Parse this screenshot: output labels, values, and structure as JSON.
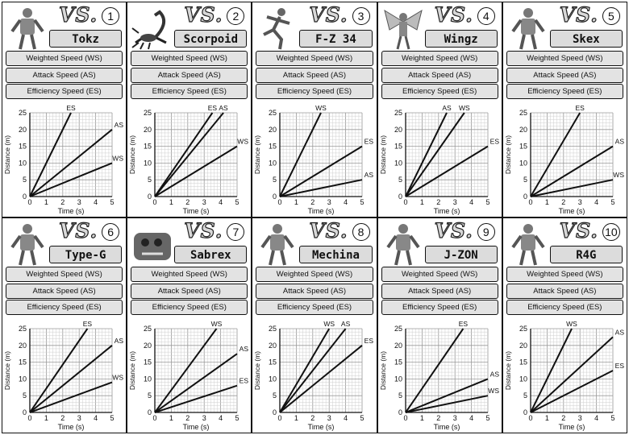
{
  "vs_label": "VS.",
  "rows": [
    "Weighted Speed (WS)",
    "Attack Speed (AS)",
    "Efficiency Speed (ES)"
  ],
  "axis": {
    "xlabel": "Time (s)",
    "ylabel": "Distance (m)",
    "xticks": [
      "0",
      "1",
      "2",
      "3",
      "4",
      "5"
    ],
    "yticks": [
      "0",
      "5",
      "10",
      "15",
      "20",
      "25"
    ]
  },
  "cards": [
    {
      "num": "1",
      "name": "Tokz",
      "robot_icon": "humanoid-robot-icon"
    },
    {
      "num": "2",
      "name": "Scorpoid",
      "robot_icon": "scorpion-robot-icon"
    },
    {
      "num": "3",
      "name": "F-Z 34",
      "robot_icon": "running-robot-icon"
    },
    {
      "num": "4",
      "name": "Wingz",
      "robot_icon": "winged-robot-icon"
    },
    {
      "num": "5",
      "name": "Skex",
      "robot_icon": "skeleton-robot-icon"
    },
    {
      "num": "6",
      "name": "Type-G",
      "robot_icon": "mech-robot-icon"
    },
    {
      "num": "7",
      "name": "Sabrex",
      "robot_icon": "lion-robot-icon"
    },
    {
      "num": "8",
      "name": "Mechina",
      "robot_icon": "armored-robot-icon"
    },
    {
      "num": "9",
      "name": "J-ZON",
      "robot_icon": "android-robot-icon"
    },
    {
      "num": "10",
      "name": "R4G",
      "robot_icon": "walker-robot-icon"
    }
  ],
  "chart_data": [
    {
      "type": "line",
      "xlim": [
        0,
        5
      ],
      "ylim": [
        0,
        25
      ],
      "xlabel": "Time (s)",
      "ylabel": "Distance (m)",
      "grid": true,
      "series": [
        {
          "name": "ES",
          "x": [
            0,
            2.5
          ],
          "y": [
            0,
            25
          ]
        },
        {
          "name": "AS",
          "x": [
            0,
            5
          ],
          "y": [
            0,
            20
          ]
        },
        {
          "name": "WS",
          "x": [
            0,
            5
          ],
          "y": [
            0,
            10
          ]
        }
      ]
    },
    {
      "type": "line",
      "xlim": [
        0,
        5
      ],
      "ylim": [
        0,
        25
      ],
      "xlabel": "Time (s)",
      "ylabel": "Distance (m)",
      "grid": true,
      "series": [
        {
          "name": "ES",
          "x": [
            0,
            3.5
          ],
          "y": [
            0,
            25
          ]
        },
        {
          "name": "AS",
          "x": [
            0,
            4.17
          ],
          "y": [
            0,
            25
          ]
        },
        {
          "name": "WS",
          "x": [
            0,
            5
          ],
          "y": [
            0,
            15
          ]
        }
      ]
    },
    {
      "type": "line",
      "xlim": [
        0,
        5
      ],
      "ylim": [
        0,
        25
      ],
      "xlabel": "Time (s)",
      "ylabel": "Distance (m)",
      "grid": true,
      "series": [
        {
          "name": "WS",
          "x": [
            0,
            2.5
          ],
          "y": [
            0,
            25
          ]
        },
        {
          "name": "ES",
          "x": [
            0,
            5
          ],
          "y": [
            0,
            15
          ]
        },
        {
          "name": "AS",
          "x": [
            0,
            5
          ],
          "y": [
            0,
            5
          ]
        }
      ]
    },
    {
      "type": "line",
      "xlim": [
        0,
        5
      ],
      "ylim": [
        0,
        25
      ],
      "xlabel": "Time (s)",
      "ylabel": "Distance (m)",
      "grid": true,
      "series": [
        {
          "name": "AS",
          "x": [
            0,
            2.5
          ],
          "y": [
            0,
            25
          ]
        },
        {
          "name": "WS",
          "x": [
            0,
            3.57
          ],
          "y": [
            0,
            25
          ]
        },
        {
          "name": "ES",
          "x": [
            0,
            5
          ],
          "y": [
            0,
            15
          ]
        }
      ]
    },
    {
      "type": "line",
      "xlim": [
        0,
        5
      ],
      "ylim": [
        0,
        25
      ],
      "xlabel": "Time (s)",
      "ylabel": "Distance (m)",
      "grid": true,
      "series": [
        {
          "name": "ES",
          "x": [
            0,
            3
          ],
          "y": [
            0,
            25
          ]
        },
        {
          "name": "AS",
          "x": [
            0,
            5
          ],
          "y": [
            0,
            15
          ]
        },
        {
          "name": "WS",
          "x": [
            0,
            5
          ],
          "y": [
            0,
            5
          ]
        }
      ]
    },
    {
      "type": "line",
      "xlim": [
        0,
        5
      ],
      "ylim": [
        0,
        25
      ],
      "xlabel": "Time (s)",
      "ylabel": "Distance (m)",
      "grid": true,
      "series": [
        {
          "name": "ES",
          "x": [
            0,
            3.5
          ],
          "y": [
            0,
            25
          ]
        },
        {
          "name": "AS",
          "x": [
            0,
            5
          ],
          "y": [
            0,
            20
          ]
        },
        {
          "name": "WS",
          "x": [
            0,
            5
          ],
          "y": [
            0,
            9
          ]
        }
      ]
    },
    {
      "type": "line",
      "xlim": [
        0,
        5
      ],
      "ylim": [
        0,
        25
      ],
      "xlabel": "Time (s)",
      "ylabel": "Distance (m)",
      "grid": true,
      "series": [
        {
          "name": "WS",
          "x": [
            0,
            3.75
          ],
          "y": [
            0,
            25
          ]
        },
        {
          "name": "AS",
          "x": [
            0,
            5
          ],
          "y": [
            0,
            17.5
          ]
        },
        {
          "name": "ES",
          "x": [
            0,
            5
          ],
          "y": [
            0,
            8
          ]
        }
      ]
    },
    {
      "type": "line",
      "xlim": [
        0,
        5
      ],
      "ylim": [
        0,
        25
      ],
      "xlabel": "Time (s)",
      "ylabel": "Distance (m)",
      "grid": true,
      "series": [
        {
          "name": "WS",
          "x": [
            0,
            3
          ],
          "y": [
            0,
            25
          ]
        },
        {
          "name": "AS",
          "x": [
            0,
            4
          ],
          "y": [
            0,
            25
          ]
        },
        {
          "name": "ES",
          "x": [
            0,
            5
          ],
          "y": [
            0,
            20
          ]
        }
      ]
    },
    {
      "type": "line",
      "xlim": [
        0,
        5
      ],
      "ylim": [
        0,
        25
      ],
      "xlabel": "Time (s)",
      "ylabel": "Distance (m)",
      "grid": true,
      "series": [
        {
          "name": "ES",
          "x": [
            0,
            3.5
          ],
          "y": [
            0,
            25
          ]
        },
        {
          "name": "AS",
          "x": [
            0,
            5
          ],
          "y": [
            0,
            10
          ]
        },
        {
          "name": "WS",
          "x": [
            0,
            5
          ],
          "y": [
            0,
            5
          ]
        }
      ]
    },
    {
      "type": "line",
      "xlim": [
        0,
        5
      ],
      "ylim": [
        0,
        25
      ],
      "xlabel": "Time (s)",
      "ylabel": "Distance (m)",
      "grid": true,
      "series": [
        {
          "name": "WS",
          "x": [
            0,
            2.5
          ],
          "y": [
            0,
            25
          ]
        },
        {
          "name": "AS",
          "x": [
            0,
            5
          ],
          "y": [
            0,
            22.5
          ]
        },
        {
          "name": "ES",
          "x": [
            0,
            5
          ],
          "y": [
            0,
            12.5
          ]
        }
      ]
    }
  ]
}
